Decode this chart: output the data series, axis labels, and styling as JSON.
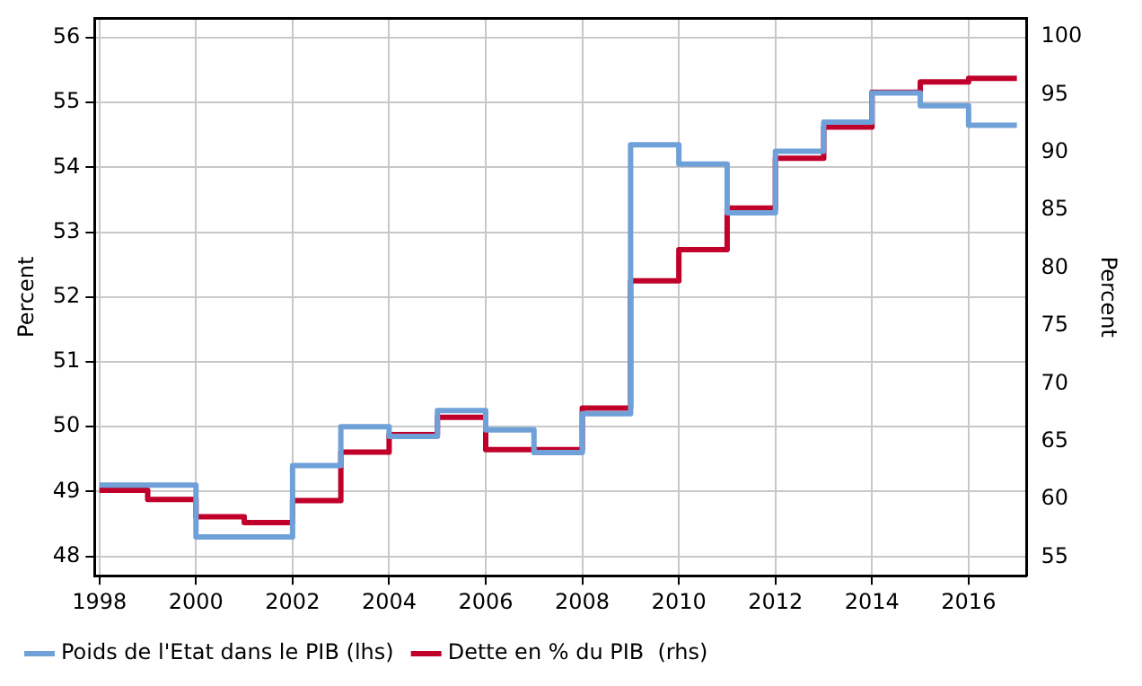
{
  "chart_data": {
    "type": "step",
    "ylabel": "Percent",
    "y2label": "Percent",
    "x": [
      1998,
      1999,
      2000,
      2001,
      2002,
      2003,
      2004,
      2005,
      2006,
      2007,
      2008,
      2009,
      2010,
      2011,
      2012,
      2013,
      2014,
      2015,
      2016,
      2017
    ],
    "series": [
      {
        "name": "Poids de l'Etat dans le PIB (lhs)",
        "color": "#70a0d8",
        "values": [
          49.1,
          49.1,
          48.3,
          48.3,
          49.4,
          50.0,
          49.85,
          50.25,
          49.95,
          49.6,
          50.2,
          54.35,
          54.05,
          53.3,
          54.25,
          54.7,
          55.15,
          54.95,
          54.65,
          54.65
        ]
      },
      {
        "name": "Dette en % du PIB  (rhs)",
        "color": "#c0002a",
        "axis": "y2",
        "values": [
          60.8,
          60.0,
          58.5,
          58.0,
          59.9,
          64.1,
          65.6,
          67.1,
          64.3,
          64.3,
          67.9,
          78.9,
          81.6,
          85.2,
          89.5,
          92.2,
          95.2,
          96.1,
          96.4,
          96.4
        ]
      }
    ],
    "xlim": [
      1997.9,
      2017.2
    ],
    "xticks": [
      1998,
      2000,
      2002,
      2004,
      2006,
      2008,
      2010,
      2012,
      2014,
      2016
    ],
    "ylim": [
      47.7,
      56.3
    ],
    "yticks": [
      48,
      49,
      50,
      51,
      52,
      53,
      54,
      55,
      56
    ],
    "y2lim": [
      53.4,
      101.6
    ],
    "y2ticks": [
      55,
      60,
      65,
      70,
      75,
      80,
      85,
      90,
      95,
      100
    ],
    "grid": true,
    "legend": "bottom",
    "line_style": "solid",
    "marker": "none"
  }
}
